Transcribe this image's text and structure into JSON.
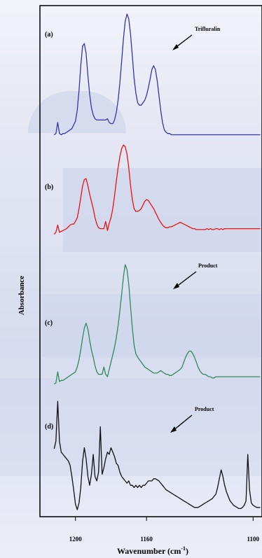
{
  "chart_data": {
    "type": "line",
    "xlabel": "Wavenumber (cm-1)",
    "ylabel": "Absorbance",
    "xlim": [
      1220,
      1095
    ],
    "x_ticks": [
      1200,
      1160,
      1100
    ],
    "x_tick_labels": [
      "1200",
      "1160",
      "1100"
    ],
    "annotations": [
      {
        "text": "Trifluralin",
        "series": "(a)"
      },
      {
        "text": "Product",
        "series": "(c)"
      },
      {
        "text": "Product",
        "series": "(d)"
      }
    ],
    "series": [
      {
        "name": "(a)",
        "color": "#3535a5",
        "x": [
          1212,
          1211,
          1210,
          1209,
          1208,
          1207,
          1206,
          1205,
          1204,
          1203,
          1202,
          1201,
          1200,
          1199,
          1198,
          1197,
          1196,
          1195,
          1194,
          1193,
          1192,
          1191,
          1190,
          1189,
          1188,
          1187,
          1186,
          1185,
          1184,
          1183,
          1182,
          1181,
          1180,
          1179,
          1178,
          1177,
          1176,
          1175,
          1174,
          1173,
          1172,
          1171,
          1170,
          1169,
          1168,
          1167,
          1166,
          1165,
          1164,
          1163,
          1162,
          1161,
          1160,
          1159,
          1158,
          1157,
          1156,
          1155,
          1154,
          1153,
          1152,
          1151,
          1150,
          1149,
          1148,
          1147,
          1146,
          1145,
          1144,
          1143,
          1142,
          1141,
          1140,
          1139,
          1138,
          1137,
          1136,
          1135,
          1134,
          1133,
          1132,
          1131,
          1130,
          1129,
          1128,
          1127,
          1126,
          1125,
          1124,
          1123,
          1122,
          1121,
          1120,
          1119,
          1118,
          1117,
          1116,
          1115,
          1114,
          1113,
          1112,
          1111,
          1110,
          1109,
          1108,
          1107,
          1106,
          1105,
          1104,
          1103,
          1102,
          1101,
          1100,
          1099,
          1098,
          1097,
          1096
        ],
        "y": [
          0.02,
          0.03,
          0.12,
          0.03,
          0.02,
          0.03,
          0.03,
          0.04,
          0.05,
          0.06,
          0.07,
          0.1,
          0.13,
          0.22,
          0.38,
          0.58,
          0.74,
          0.76,
          0.68,
          0.5,
          0.35,
          0.24,
          0.18,
          0.15,
          0.14,
          0.14,
          0.14,
          0.14,
          0.14,
          0.14,
          0.15,
          0.12,
          0.11,
          0.11,
          0.14,
          0.2,
          0.3,
          0.44,
          0.62,
          0.8,
          0.94,
          1.0,
          0.96,
          0.84,
          0.66,
          0.48,
          0.36,
          0.28,
          0.26,
          0.26,
          0.28,
          0.3,
          0.34,
          0.4,
          0.47,
          0.55,
          0.58,
          0.55,
          0.46,
          0.34,
          0.22,
          0.12,
          0.06,
          0.04,
          0.03,
          0.03,
          0.02,
          0.02,
          0.02,
          0.02,
          0.02,
          0.02,
          0.02,
          0.02,
          0.02,
          0.02,
          0.02,
          0.02,
          0.02,
          0.02,
          0.02,
          0.02,
          0.02,
          0.02,
          0.02,
          0.02,
          0.02,
          0.02,
          0.02,
          0.02,
          0.02,
          0.02,
          0.02,
          0.02,
          0.02,
          0.02,
          0.02,
          0.02,
          0.02,
          0.02,
          0.02,
          0.02,
          0.02,
          0.02,
          0.02,
          0.02,
          0.02,
          0.02,
          0.02,
          0.02,
          0.02,
          0.02,
          0.02,
          0.02,
          0.02,
          0.02,
          0.02
        ]
      },
      {
        "name": "(b)",
        "color": "#e81212",
        "x": [
          1212,
          1211,
          1210,
          1209,
          1208,
          1207,
          1206,
          1205,
          1204,
          1203,
          1202,
          1201,
          1200,
          1199,
          1198,
          1197,
          1196,
          1195,
          1194,
          1193,
          1192,
          1191,
          1190,
          1189,
          1188,
          1187,
          1186,
          1185,
          1184,
          1183,
          1182,
          1181,
          1180,
          1179,
          1178,
          1177,
          1176,
          1175,
          1174,
          1173,
          1172,
          1171,
          1170,
          1169,
          1168,
          1167,
          1166,
          1165,
          1164,
          1163,
          1162,
          1161,
          1160,
          1159,
          1158,
          1157,
          1156,
          1155,
          1154,
          1153,
          1152,
          1151,
          1150,
          1149,
          1148,
          1147,
          1146,
          1145,
          1144,
          1143,
          1142,
          1141,
          1140,
          1139,
          1138,
          1137,
          1136,
          1135,
          1134,
          1133,
          1132,
          1131,
          1130,
          1129,
          1128,
          1127,
          1126,
          1125,
          1124,
          1123,
          1122,
          1121,
          1120,
          1119,
          1118,
          1117,
          1116,
          1115,
          1114,
          1113,
          1112,
          1111,
          1110,
          1109,
          1108,
          1107,
          1106,
          1105,
          1104,
          1103,
          1102,
          1101,
          1100,
          1099,
          1098,
          1097,
          1096
        ],
        "y": [
          0.02,
          0.04,
          0.12,
          0.04,
          0.05,
          0.06,
          0.07,
          0.08,
          0.1,
          0.12,
          0.13,
          0.13,
          0.16,
          0.2,
          0.3,
          0.42,
          0.55,
          0.62,
          0.63,
          0.55,
          0.46,
          0.38,
          0.3,
          0.2,
          0.13,
          0.09,
          0.08,
          0.08,
          0.08,
          0.16,
          0.06,
          0.14,
          0.2,
          0.3,
          0.44,
          0.6,
          0.75,
          0.87,
          0.96,
          1.0,
          0.98,
          0.9,
          0.75,
          0.56,
          0.4,
          0.3,
          0.27,
          0.27,
          0.28,
          0.3,
          0.34,
          0.38,
          0.4,
          0.39,
          0.36,
          0.33,
          0.3,
          0.26,
          0.22,
          0.18,
          0.15,
          0.12,
          0.1,
          0.09,
          0.09,
          0.1,
          0.1,
          0.11,
          0.12,
          0.13,
          0.14,
          0.15,
          0.14,
          0.13,
          0.12,
          0.11,
          0.1,
          0.09,
          0.08,
          0.08,
          0.07,
          0.07,
          0.07,
          0.07,
          0.07,
          0.07,
          0.08,
          0.07,
          0.08,
          0.07,
          0.07,
          0.08,
          0.08,
          0.07,
          0.08,
          0.07,
          0.08,
          0.08,
          0.08,
          0.08,
          0.08,
          0.08,
          0.08,
          0.08,
          0.08,
          0.08,
          0.08,
          0.08,
          0.08,
          0.08,
          0.08,
          0.08,
          0.08,
          0.08,
          0.08,
          0.08,
          0.08
        ]
      },
      {
        "name": "(c)",
        "color": "#2f8a5a",
        "x": [
          1212,
          1211,
          1210,
          1209,
          1208,
          1207,
          1206,
          1205,
          1204,
          1203,
          1202,
          1201,
          1200,
          1199,
          1198,
          1197,
          1196,
          1195,
          1194,
          1193,
          1192,
          1191,
          1190,
          1189,
          1188,
          1187,
          1186,
          1185,
          1184,
          1183,
          1182,
          1181,
          1180,
          1179,
          1178,
          1177,
          1176,
          1175,
          1174,
          1173,
          1172,
          1171,
          1170,
          1169,
          1168,
          1167,
          1166,
          1165,
          1164,
          1163,
          1162,
          1161,
          1160,
          1159,
          1158,
          1157,
          1156,
          1155,
          1154,
          1153,
          1152,
          1151,
          1150,
          1149,
          1148,
          1147,
          1146,
          1145,
          1144,
          1143,
          1142,
          1141,
          1140,
          1139,
          1138,
          1137,
          1136,
          1135,
          1134,
          1133,
          1132,
          1131,
          1130,
          1129,
          1128,
          1127,
          1126,
          1125,
          1124,
          1123,
          1122,
          1121,
          1120,
          1119,
          1118,
          1117,
          1116,
          1115,
          1114,
          1113,
          1112,
          1111,
          1110,
          1109,
          1108,
          1107,
          1106,
          1105,
          1104,
          1103,
          1102,
          1101,
          1100,
          1099,
          1098,
          1097,
          1096
        ],
        "y": [
          0.02,
          0.03,
          0.12,
          0.04,
          0.05,
          0.05,
          0.06,
          0.07,
          0.08,
          0.09,
          0.1,
          0.11,
          0.12,
          0.16,
          0.22,
          0.3,
          0.4,
          0.48,
          0.52,
          0.47,
          0.38,
          0.3,
          0.24,
          0.17,
          0.12,
          0.1,
          0.1,
          0.1,
          0.16,
          0.1,
          0.08,
          0.14,
          0.2,
          0.26,
          0.32,
          0.4,
          0.5,
          0.62,
          0.76,
          0.9,
          1.0,
          0.96,
          0.84,
          0.66,
          0.48,
          0.34,
          0.27,
          0.24,
          0.22,
          0.2,
          0.18,
          0.16,
          0.15,
          0.14,
          0.13,
          0.12,
          0.11,
          0.11,
          0.11,
          0.12,
          0.13,
          0.12,
          0.11,
          0.1,
          0.1,
          0.09,
          0.09,
          0.1,
          0.11,
          0.12,
          0.13,
          0.14,
          0.16,
          0.2,
          0.24,
          0.27,
          0.29,
          0.29,
          0.27,
          0.24,
          0.2,
          0.16,
          0.13,
          0.11,
          0.1,
          0.1,
          0.09,
          0.08,
          0.08,
          0.07,
          0.07,
          0.08,
          0.08,
          0.08,
          0.08,
          0.08,
          0.08,
          0.08,
          0.08,
          0.08,
          0.08,
          0.08,
          0.08,
          0.08,
          0.08,
          0.08,
          0.08,
          0.08,
          0.08,
          0.08,
          0.08,
          0.08,
          0.08,
          0.08,
          0.08,
          0.08,
          0.08
        ]
      },
      {
        "name": "(d)",
        "color": "#111111",
        "x": [
          1212,
          1211,
          1210,
          1209,
          1208,
          1207,
          1206,
          1205,
          1204,
          1203,
          1202,
          1201,
          1200,
          1199,
          1198,
          1197,
          1196,
          1195,
          1194,
          1193,
          1192,
          1191,
          1190,
          1189,
          1188,
          1187,
          1186,
          1185,
          1184,
          1183,
          1182,
          1181,
          1180,
          1179,
          1178,
          1177,
          1176,
          1175,
          1174,
          1173,
          1172,
          1171,
          1170,
          1169,
          1168,
          1167,
          1166,
          1165,
          1164,
          1163,
          1162,
          1161,
          1160,
          1159,
          1158,
          1157,
          1156,
          1155,
          1154,
          1153,
          1152,
          1151,
          1150,
          1149,
          1148,
          1147,
          1146,
          1145,
          1144,
          1143,
          1142,
          1141,
          1140,
          1139,
          1138,
          1137,
          1136,
          1135,
          1134,
          1133,
          1132,
          1131,
          1130,
          1129,
          1128,
          1127,
          1126,
          1125,
          1124,
          1123,
          1122,
          1121,
          1120,
          1119,
          1118,
          1117,
          1116,
          1115,
          1114,
          1113,
          1112,
          1111,
          1110,
          1109,
          1108,
          1107,
          1106,
          1105,
          1104,
          1103,
          1102,
          1101,
          1100,
          1099,
          1098,
          1097,
          1096
        ],
        "y": [
          0.55,
          0.62,
          0.98,
          0.62,
          0.52,
          0.5,
          0.48,
          0.46,
          0.44,
          0.4,
          0.3,
          0.18,
          0.05,
          0.0,
          0.06,
          0.2,
          0.44,
          0.56,
          0.46,
          0.3,
          0.22,
          0.32,
          0.5,
          0.3,
          0.26,
          0.34,
          0.75,
          0.32,
          0.38,
          0.46,
          0.52,
          0.5,
          0.56,
          0.52,
          0.48,
          0.42,
          0.4,
          0.34,
          0.3,
          0.28,
          0.26,
          0.24,
          0.26,
          0.22,
          0.22,
          0.2,
          0.22,
          0.2,
          0.22,
          0.2,
          0.22,
          0.22,
          0.24,
          0.26,
          0.26,
          0.26,
          0.28,
          0.28,
          0.27,
          0.26,
          0.24,
          0.22,
          0.2,
          0.18,
          0.17,
          0.16,
          0.15,
          0.14,
          0.13,
          0.12,
          0.11,
          0.1,
          0.09,
          0.08,
          0.07,
          0.06,
          0.05,
          0.04,
          0.03,
          0.02,
          0.02,
          0.02,
          0.03,
          0.04,
          0.05,
          0.06,
          0.07,
          0.08,
          0.09,
          0.1,
          0.12,
          0.14,
          0.2,
          0.28,
          0.36,
          0.3,
          0.22,
          0.16,
          0.12,
          0.08,
          0.06,
          0.04,
          0.03,
          0.02,
          0.01,
          0.01,
          0.02,
          0.04,
          0.08,
          0.5,
          0.18,
          0.06,
          0.04,
          0.03,
          0.02,
          0.02,
          0.02
        ]
      }
    ]
  }
}
